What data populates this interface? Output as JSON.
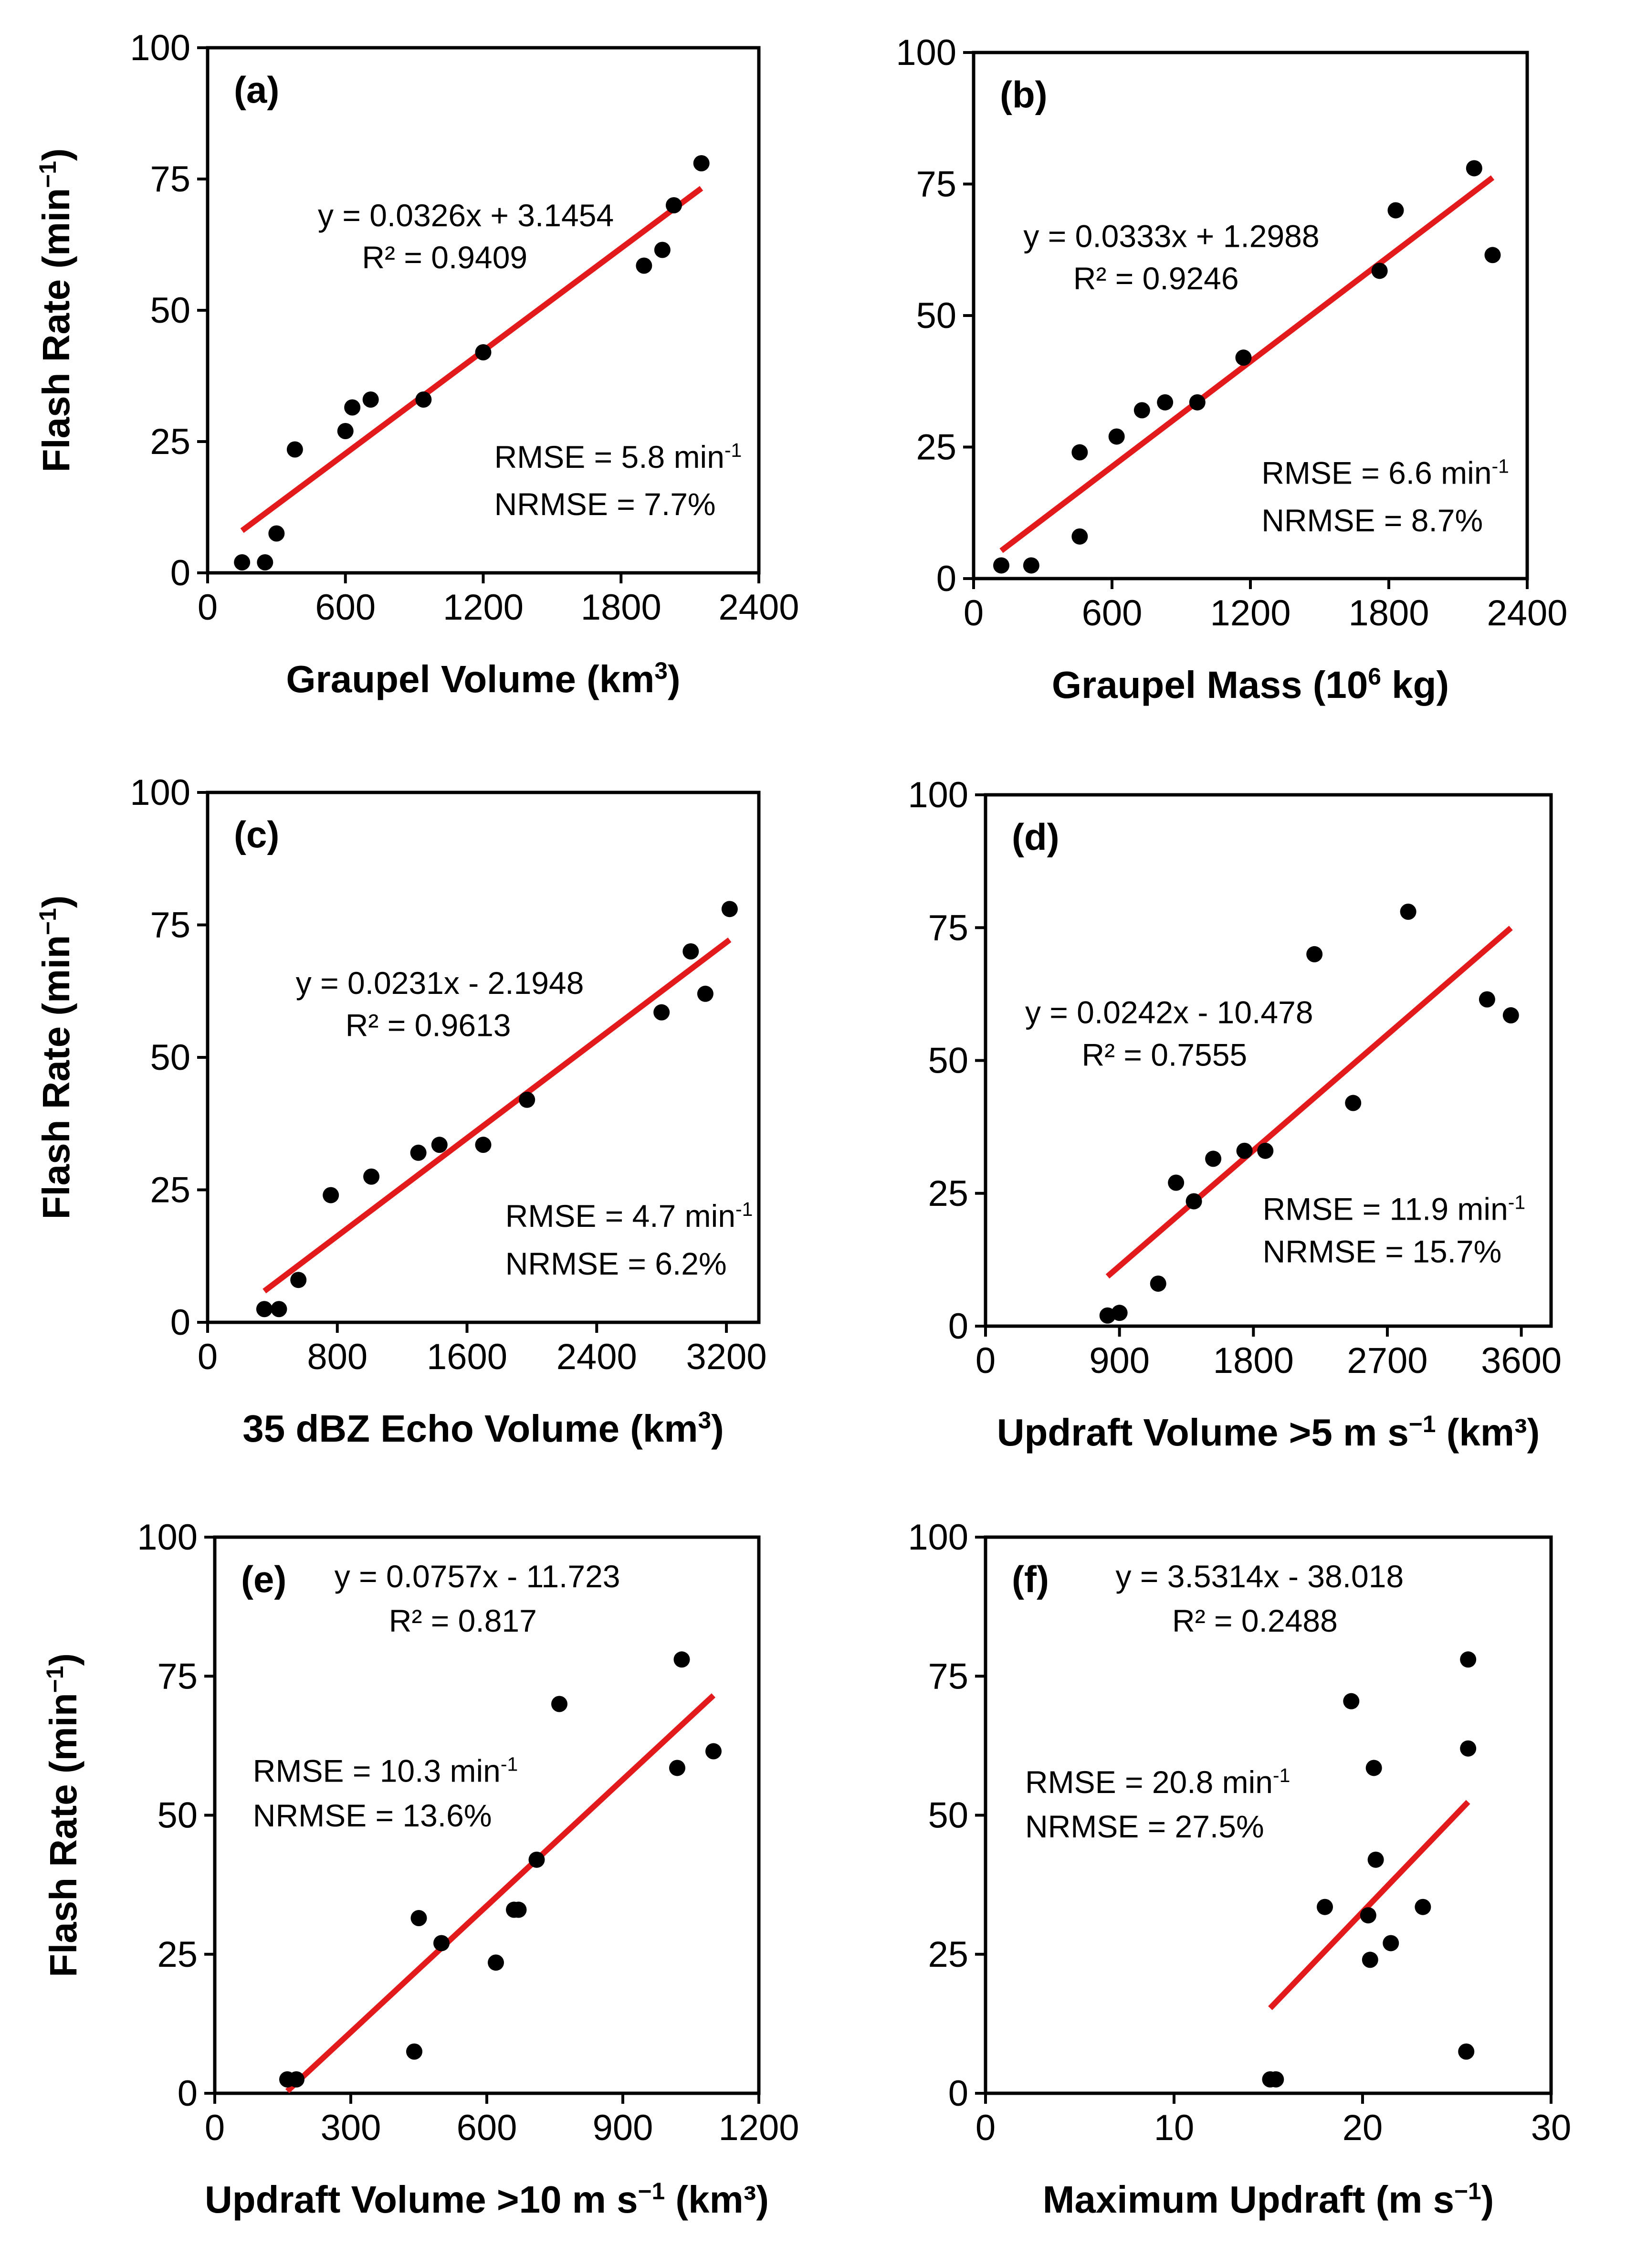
{
  "chart_data": [
    {
      "type": "scatter",
      "panel": "(a)",
      "xlabel": "Graupel Volume (km",
      "xlabel_sup": "3",
      "xlabel_after": ")",
      "ylabel": "Flash Rate (min",
      "ylabel_sup": "−1",
      "ylabel_after": ")",
      "xlim": [
        0,
        2400
      ],
      "xticks": [
        0,
        600,
        1200,
        1800,
        2400
      ],
      "ylim": [
        0,
        100
      ],
      "yticks": [
        0,
        25,
        50,
        75,
        100
      ],
      "points": [
        [
          150,
          2
        ],
        [
          250,
          2
        ],
        [
          300,
          7.5
        ],
        [
          380,
          23.5
        ],
        [
          600,
          27
        ],
        [
          630,
          31.5
        ],
        [
          710,
          33
        ],
        [
          940,
          33
        ],
        [
          1200,
          42
        ],
        [
          1900,
          58.5
        ],
        [
          1980,
          61.5
        ],
        [
          2030,
          70
        ],
        [
          2150,
          78
        ]
      ],
      "fit": {
        "slope": 0.0326,
        "intercept": 3.1454,
        "x_range": [
          150,
          2150
        ]
      },
      "equation": "y = 0.0326x + 3.1454",
      "r2": "R² = 0.9409",
      "rmse": "RMSE = 5.8 min",
      "rmse_sup": "-1",
      "nrmse": "NRMSE = 7.7%"
    },
    {
      "type": "scatter",
      "panel": "(b)",
      "xlabel": "Graupel Mass (10",
      "xlabel_sup": "6",
      "xlabel_after": " kg)",
      "ylabel": "",
      "ylabel_sup": "",
      "ylabel_after": "",
      "xlim": [
        0,
        2400
      ],
      "xticks": [
        0,
        600,
        1200,
        1800,
        2400
      ],
      "ylim": [
        0,
        100
      ],
      "yticks": [
        0,
        25,
        50,
        75,
        100
      ],
      "points": [
        [
          120,
          2.5
        ],
        [
          250,
          2.5
        ],
        [
          460,
          8
        ],
        [
          460,
          24
        ],
        [
          620,
          27
        ],
        [
          730,
          32
        ],
        [
          830,
          33.5
        ],
        [
          970,
          33.5
        ],
        [
          1170,
          42
        ],
        [
          1760,
          58.5
        ],
        [
          1830,
          70
        ],
        [
          2170,
          78
        ],
        [
          2250,
          61.5
        ]
      ],
      "fit": {
        "slope": 0.0333,
        "intercept": 1.2988,
        "x_range": [
          120,
          2250
        ]
      },
      "equation": "y = 0.0333x + 1.2988",
      "r2": "R² = 0.9246",
      "rmse": "RMSE = 6.6 min",
      "rmse_sup": "-1",
      "nrmse": "NRMSE = 8.7%"
    },
    {
      "type": "scatter",
      "panel": "(c)",
      "xlabel": "35 dBZ Echo Volume (km",
      "xlabel_sup": "3",
      "xlabel_after": ")",
      "ylabel": "Flash Rate (min",
      "ylabel_sup": "−1",
      "ylabel_after": ")",
      "xlim": [
        0,
        3400
      ],
      "xticks": [
        0,
        800,
        1600,
        2400,
        3200
      ],
      "ylim": [
        0,
        100
      ],
      "yticks": [
        0,
        25,
        50,
        75,
        100
      ],
      "points": [
        [
          350,
          2.5
        ],
        [
          440,
          2.5
        ],
        [
          560,
          8
        ],
        [
          760,
          24
        ],
        [
          1010,
          27.5
        ],
        [
          1300,
          32
        ],
        [
          1430,
          33.5
        ],
        [
          1700,
          33.5
        ],
        [
          1970,
          42
        ],
        [
          2800,
          58.5
        ],
        [
          2980,
          70
        ],
        [
          3070,
          62
        ],
        [
          3220,
          78
        ]
      ],
      "fit": {
        "slope": 0.0231,
        "intercept": -2.1948,
        "x_range": [
          350,
          3220
        ]
      },
      "equation": "y = 0.0231x - 2.1948",
      "r2": "R² = 0.9613",
      "rmse": "RMSE = 4.7 min",
      "rmse_sup": "-1",
      "nrmse": "NRMSE = 6.2%"
    },
    {
      "type": "scatter",
      "panel": "(d)",
      "xlabel": "Updraft Volume >5 m s",
      "xlabel_sup": "−1",
      "xlabel_after": " (km³)",
      "ylabel": "",
      "ylabel_sup": "",
      "ylabel_after": "",
      "xlim": [
        0,
        3800
      ],
      "xticks": [
        0,
        900,
        1800,
        2700,
        3600
      ],
      "ylim": [
        0,
        100
      ],
      "yticks": [
        0,
        25,
        50,
        75,
        100
      ],
      "points": [
        [
          820,
          2
        ],
        [
          900,
          2.5
        ],
        [
          1160,
          8
        ],
        [
          1280,
          27
        ],
        [
          1400,
          23.5
        ],
        [
          1530,
          31.5
        ],
        [
          1740,
          33
        ],
        [
          1880,
          33
        ],
        [
          2210,
          70
        ],
        [
          2470,
          42
        ],
        [
          2840,
          78
        ],
        [
          3370,
          61.5
        ],
        [
          3530,
          58.5
        ]
      ],
      "fit": {
        "slope": 0.0242,
        "intercept": -10.478,
        "x_range": [
          820,
          3530
        ]
      },
      "equation": "y = 0.0242x - 10.478",
      "r2": "R² = 0.7555",
      "rmse": "RMSE = 11.9 min",
      "rmse_sup": "-1",
      "nrmse": "NRMSE = 15.7%"
    },
    {
      "type": "scatter",
      "panel": "(e)",
      "xlabel": "Updraft Volume >10 m s",
      "xlabel_sup": "−1",
      "xlabel_after": " (km³)",
      "ylabel": "Flash Rate (min",
      "ylabel_sup": "−1",
      "ylabel_after": ")",
      "xlim": [
        0,
        1200
      ],
      "xticks": [
        0,
        300,
        600,
        900,
        1200
      ],
      "ylim": [
        0,
        100
      ],
      "yticks": [
        0,
        25,
        50,
        75,
        100
      ],
      "points": [
        [
          160,
          2.5
        ],
        [
          180,
          2.5
        ],
        [
          440,
          7.5
        ],
        [
          450,
          31.5
        ],
        [
          500,
          27
        ],
        [
          620,
          23.5
        ],
        [
          660,
          33
        ],
        [
          670,
          33
        ],
        [
          710,
          42
        ],
        [
          760,
          70
        ],
        [
          1020,
          58.5
        ],
        [
          1030,
          78
        ],
        [
          1100,
          61.5
        ]
      ],
      "fit": {
        "slope": 0.0757,
        "intercept": -11.723,
        "x_range": [
          160,
          1100
        ]
      },
      "equation": "y = 0.0757x - 11.723",
      "r2": "R² = 0.817",
      "rmse": "RMSE = 10.3  min",
      "rmse_sup": "-1",
      "nrmse": "NRMSE = 13.6%"
    },
    {
      "type": "scatter",
      "panel": "(f)",
      "xlabel": "Maximum Updraft (m s",
      "xlabel_sup": "−1",
      "xlabel_after": ")",
      "ylabel": "",
      "ylabel_sup": "",
      "ylabel_after": "",
      "xlim": [
        0,
        30
      ],
      "xticks": [
        0,
        10,
        20,
        30
      ],
      "ylim": [
        0,
        100
      ],
      "yticks": [
        0,
        25,
        50,
        75,
        100
      ],
      "points": [
        [
          15.1,
          2.5
        ],
        [
          15.4,
          2.5
        ],
        [
          18,
          33.5
        ],
        [
          19.4,
          70.5
        ],
        [
          20.3,
          32
        ],
        [
          20.4,
          24
        ],
        [
          20.6,
          58.5
        ],
        [
          20.7,
          42
        ],
        [
          21.5,
          27
        ],
        [
          23.2,
          33.5
        ],
        [
          25.5,
          7.5
        ],
        [
          25.6,
          62
        ],
        [
          25.6,
          78
        ]
      ],
      "fit": {
        "slope": 3.5314,
        "intercept": -38.018,
        "x_range": [
          15.1,
          25.6
        ]
      },
      "equation": "y = 3.5314x - 38.018",
      "r2": "R² = 0.2488",
      "rmse": "RMSE =   20.8 min",
      "rmse_sup": "-1",
      "nrmse": "NRMSE = 27.5%"
    }
  ]
}
